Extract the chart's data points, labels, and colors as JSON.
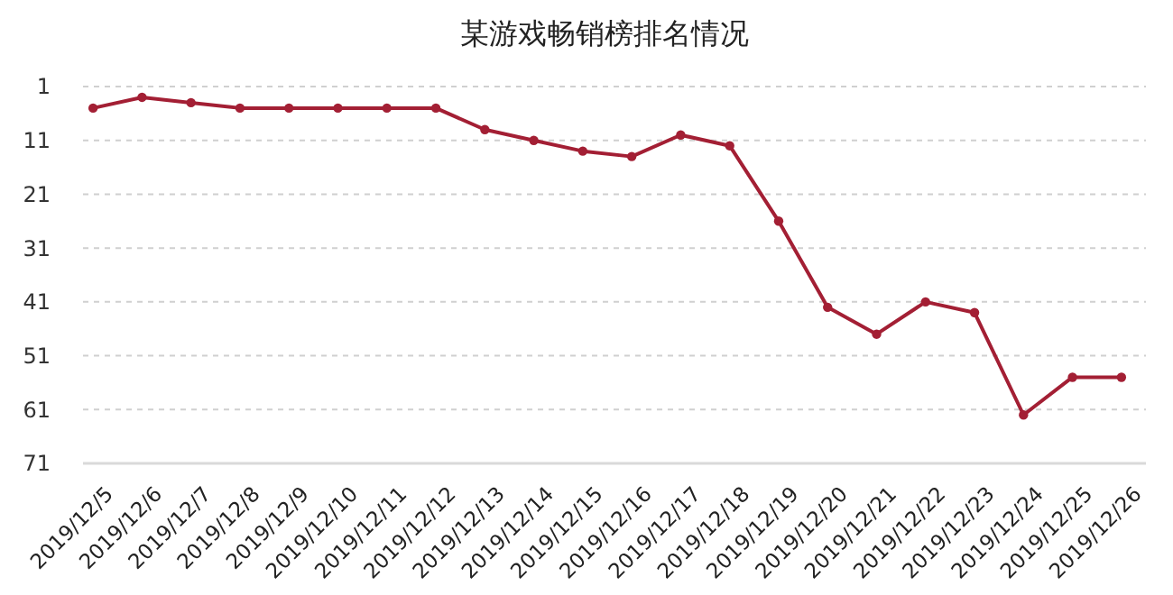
{
  "chart_data": {
    "type": "line",
    "title": "某游戏畅销榜排名情况",
    "categories": [
      "2019/12/5",
      "2019/12/6",
      "2019/12/7",
      "2019/12/8",
      "2019/12/9",
      "2019/12/10",
      "2019/12/11",
      "2019/12/12",
      "2019/12/13",
      "2019/12/14",
      "2019/12/15",
      "2019/12/16",
      "2019/12/17",
      "2019/12/18",
      "2019/12/19",
      "2019/12/20",
      "2019/12/21",
      "2019/12/22",
      "2019/12/23",
      "2019/12/24",
      "2019/12/25",
      "2019/12/26"
    ],
    "series": [
      {
        "color": "#a31f34",
        "values": [
          5,
          3,
          4,
          5,
          5,
          5,
          5,
          5,
          9,
          11,
          13,
          14,
          10,
          12,
          26,
          42,
          47,
          41,
          43,
          62,
          55,
          55
        ]
      }
    ],
    "ylim": [
      71,
      1
    ],
    "yticks": [
      1,
      11,
      21,
      31,
      41,
      51,
      61,
      71
    ],
    "grid": "y",
    "marker": "circle",
    "line_style": "solid"
  }
}
